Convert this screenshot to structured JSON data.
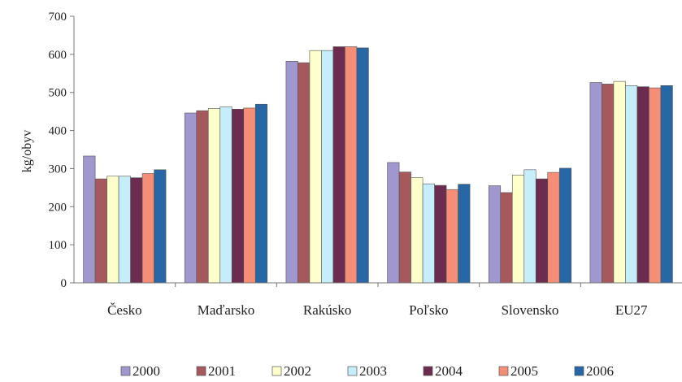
{
  "chart_data": {
    "type": "bar",
    "title": "",
    "xlabel": "",
    "ylabel": "kg/obyv",
    "ylim": [
      0,
      700
    ],
    "yticks": [
      0,
      100,
      200,
      300,
      400,
      500,
      600,
      700
    ],
    "grid": false,
    "legend_position": "bottom",
    "categories": [
      "Česko",
      "Maďarsko",
      "Rakúsko",
      "Poľsko",
      "Slovensko",
      "EU27"
    ],
    "series": [
      {
        "name": "2000",
        "color": "#9f97ce",
        "values": [
          333,
          446,
          582,
          316,
          255,
          526
        ]
      },
      {
        "name": "2001",
        "color": "#a6595c",
        "values": [
          273,
          452,
          578,
          291,
          237,
          522
        ]
      },
      {
        "name": "2002",
        "color": "#ffffcc",
        "values": [
          280,
          458,
          610,
          276,
          283,
          529
        ]
      },
      {
        "name": "2003",
        "color": "#c6eefa",
        "values": [
          280,
          462,
          610,
          260,
          297,
          518
        ]
      },
      {
        "name": "2004",
        "color": "#6c2c4f",
        "values": [
          276,
          456,
          620,
          256,
          273,
          515
        ]
      },
      {
        "name": "2005",
        "color": "#f48e77",
        "values": [
          287,
          459,
          620,
          245,
          290,
          512
        ]
      },
      {
        "name": "2006",
        "color": "#2767a6",
        "values": [
          297,
          469,
          617,
          259,
          301,
          518
        ]
      }
    ]
  }
}
